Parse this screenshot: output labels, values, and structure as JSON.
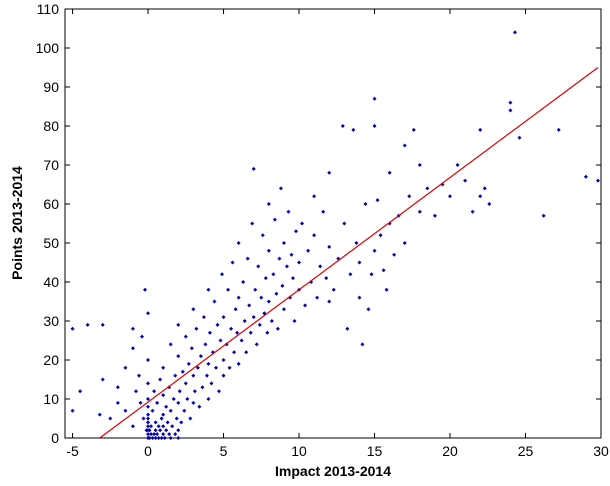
{
  "chart_data": {
    "type": "scatter",
    "title": "",
    "xlabel": "Impact 2013-2014",
    "ylabel": "Points 2013-2014",
    "xlim": [
      -5.5,
      30
    ],
    "ylim": [
      0,
      110
    ],
    "xticks": [
      -5,
      0,
      5,
      10,
      15,
      20,
      25,
      30
    ],
    "yticks": [
      0,
      10,
      20,
      30,
      40,
      50,
      60,
      70,
      80,
      90,
      100,
      110
    ],
    "grid": false,
    "legend": "none",
    "marker_color": "#0000b0",
    "fit_line_color": "#e00000",
    "fit_line": {
      "x": [
        -3.2,
        29.8
      ],
      "y": [
        0,
        95
      ]
    },
    "series": [
      {
        "points": [
          [
            -5,
            7
          ],
          [
            -5,
            28
          ],
          [
            -4,
            29
          ],
          [
            -3,
            29
          ],
          [
            -4.5,
            12
          ],
          [
            -3.2,
            6
          ],
          [
            -3,
            15
          ],
          [
            -2.5,
            5
          ],
          [
            -2,
            9
          ],
          [
            -2,
            13
          ],
          [
            -1.5,
            18
          ],
          [
            -1.5,
            7
          ],
          [
            -1,
            23
          ],
          [
            -1,
            28
          ],
          [
            -1,
            3
          ],
          [
            -0.8,
            12
          ],
          [
            -0.6,
            16
          ],
          [
            -0.5,
            9
          ],
          [
            -0.4,
            26
          ],
          [
            -0.3,
            5
          ],
          [
            -0.2,
            38
          ],
          [
            -0.1,
            2
          ],
          [
            0,
            0
          ],
          [
            0,
            1
          ],
          [
            0,
            2
          ],
          [
            0,
            3
          ],
          [
            0,
            4
          ],
          [
            0,
            5
          ],
          [
            0,
            6
          ],
          [
            0,
            8
          ],
          [
            0,
            10
          ],
          [
            0,
            14
          ],
          [
            0,
            20
          ],
          [
            0,
            32
          ],
          [
            0.1,
            0
          ],
          [
            0.1,
            2
          ],
          [
            0.2,
            1
          ],
          [
            0.2,
            3
          ],
          [
            0.3,
            0
          ],
          [
            0.3,
            7
          ],
          [
            0.4,
            1
          ],
          [
            0.4,
            12
          ],
          [
            0.5,
            0
          ],
          [
            0.5,
            2
          ],
          [
            0.5,
            4
          ],
          [
            0.6,
            1
          ],
          [
            0.6,
            9
          ],
          [
            0.7,
            0
          ],
          [
            0.7,
            3
          ],
          [
            0.8,
            2
          ],
          [
            0.8,
            15
          ],
          [
            0.9,
            0
          ],
          [
            0.9,
            5
          ],
          [
            1,
            1
          ],
          [
            1,
            3
          ],
          [
            1,
            6
          ],
          [
            1,
            11
          ],
          [
            1,
            18
          ],
          [
            1.1,
            0
          ],
          [
            1.2,
            2
          ],
          [
            1.2,
            8
          ],
          [
            1.3,
            4
          ],
          [
            1.4,
            1
          ],
          [
            1.4,
            13
          ],
          [
            1.5,
            0
          ],
          [
            1.5,
            7
          ],
          [
            1.5,
            24
          ],
          [
            1.6,
            3
          ],
          [
            1.7,
            10
          ],
          [
            1.8,
            1
          ],
          [
            1.8,
            16
          ],
          [
            1.9,
            5
          ],
          [
            2,
            0
          ],
          [
            2,
            2
          ],
          [
            2,
            9
          ],
          [
            2,
            21
          ],
          [
            2,
            29
          ],
          [
            2.1,
            12
          ],
          [
            2.2,
            4
          ],
          [
            2.3,
            17
          ],
          [
            2.4,
            7
          ],
          [
            2.5,
            14
          ],
          [
            2.5,
            26
          ],
          [
            2.6,
            10
          ],
          [
            2.7,
            19
          ],
          [
            2.8,
            5
          ],
          [
            2.9,
            23
          ],
          [
            3,
            9
          ],
          [
            3,
            16
          ],
          [
            3,
            33
          ],
          [
            3.1,
            12
          ],
          [
            3.2,
            28
          ],
          [
            3.3,
            18
          ],
          [
            3.4,
            8
          ],
          [
            3.5,
            21
          ],
          [
            3.6,
            13
          ],
          [
            3.7,
            31
          ],
          [
            3.8,
            24
          ],
          [
            3.9,
            16
          ],
          [
            4,
            10
          ],
          [
            4,
            19
          ],
          [
            4,
            38
          ],
          [
            4.1,
            27
          ],
          [
            4.2,
            14
          ],
          [
            4.3,
            22
          ],
          [
            4.4,
            35
          ],
          [
            4.5,
            18
          ],
          [
            4.6,
            29
          ],
          [
            4.7,
            12
          ],
          [
            4.8,
            25
          ],
          [
            4.9,
            42
          ],
          [
            5,
            16
          ],
          [
            5,
            20
          ],
          [
            5,
            31
          ],
          [
            5.2,
            24
          ],
          [
            5.3,
            38
          ],
          [
            5.4,
            18
          ],
          [
            5.5,
            28
          ],
          [
            5.6,
            45
          ],
          [
            5.7,
            22
          ],
          [
            5.8,
            33
          ],
          [
            5.9,
            27
          ],
          [
            6,
            19
          ],
          [
            6,
            36
          ],
          [
            6,
            50
          ],
          [
            6.2,
            25
          ],
          [
            6.3,
            40
          ],
          [
            6.4,
            30
          ],
          [
            6.5,
            22
          ],
          [
            6.6,
            46
          ],
          [
            6.7,
            34
          ],
          [
            6.8,
            27
          ],
          [
            6.9,
            55
          ],
          [
            7,
            31
          ],
          [
            7,
            69
          ],
          [
            7.1,
            38
          ],
          [
            7.2,
            24
          ],
          [
            7.3,
            44
          ],
          [
            7.4,
            29
          ],
          [
            7.5,
            36
          ],
          [
            7.6,
            52
          ],
          [
            7.7,
            32
          ],
          [
            7.8,
            41
          ],
          [
            7.9,
            27
          ],
          [
            8,
            35
          ],
          [
            8,
            48
          ],
          [
            8,
            60
          ],
          [
            8.2,
            30
          ],
          [
            8.3,
            42
          ],
          [
            8.4,
            56
          ],
          [
            8.5,
            37
          ],
          [
            8.6,
            28
          ],
          [
            8.7,
            46
          ],
          [
            8.8,
            64
          ],
          [
            8.9,
            39
          ],
          [
            9,
            33
          ],
          [
            9,
            50
          ],
          [
            9.2,
            44
          ],
          [
            9.3,
            58
          ],
          [
            9.4,
            36
          ],
          [
            9.5,
            47
          ],
          [
            9.6,
            41
          ],
          [
            9.7,
            30
          ],
          [
            9.8,
            53
          ],
          [
            10,
            38
          ],
          [
            10,
            45
          ],
          [
            10.2,
            55
          ],
          [
            10.4,
            34
          ],
          [
            10.6,
            48
          ],
          [
            10.8,
            40
          ],
          [
            11,
            52
          ],
          [
            11,
            62
          ],
          [
            11.2,
            36
          ],
          [
            11.4,
            44
          ],
          [
            11.6,
            58
          ],
          [
            11.8,
            41
          ],
          [
            12,
            35
          ],
          [
            12,
            49
          ],
          [
            12,
            68
          ],
          [
            12.3,
            38
          ],
          [
            12.6,
            46
          ],
          [
            12.9,
            80
          ],
          [
            13,
            55
          ],
          [
            13.2,
            28
          ],
          [
            13.4,
            42
          ],
          [
            13.6,
            79
          ],
          [
            13.8,
            50
          ],
          [
            14,
            36
          ],
          [
            14,
            45
          ],
          [
            14.2,
            24
          ],
          [
            14.4,
            60
          ],
          [
            14.6,
            33
          ],
          [
            14.8,
            42
          ],
          [
            15,
            80
          ],
          [
            15,
            87
          ],
          [
            15,
            48
          ],
          [
            15.2,
            61
          ],
          [
            15.4,
            52
          ],
          [
            15.6,
            43
          ],
          [
            15.8,
            38
          ],
          [
            16,
            55
          ],
          [
            16,
            68
          ],
          [
            16.3,
            47
          ],
          [
            16.6,
            57
          ],
          [
            17,
            75
          ],
          [
            17,
            50
          ],
          [
            17.3,
            62
          ],
          [
            17.6,
            79
          ],
          [
            18,
            58
          ],
          [
            18,
            70
          ],
          [
            18.5,
            64
          ],
          [
            19,
            57
          ],
          [
            19.5,
            65
          ],
          [
            20,
            62
          ],
          [
            20.5,
            70
          ],
          [
            21,
            66
          ],
          [
            21.5,
            58
          ],
          [
            22,
            62
          ],
          [
            22,
            79
          ],
          [
            22.3,
            64
          ],
          [
            22.6,
            60
          ],
          [
            24,
            84
          ],
          [
            24,
            86
          ],
          [
            24.3,
            104
          ],
          [
            24.6,
            77
          ],
          [
            26.2,
            57
          ],
          [
            27.2,
            79
          ],
          [
            29,
            67
          ],
          [
            29.8,
            66
          ]
        ]
      }
    ]
  }
}
